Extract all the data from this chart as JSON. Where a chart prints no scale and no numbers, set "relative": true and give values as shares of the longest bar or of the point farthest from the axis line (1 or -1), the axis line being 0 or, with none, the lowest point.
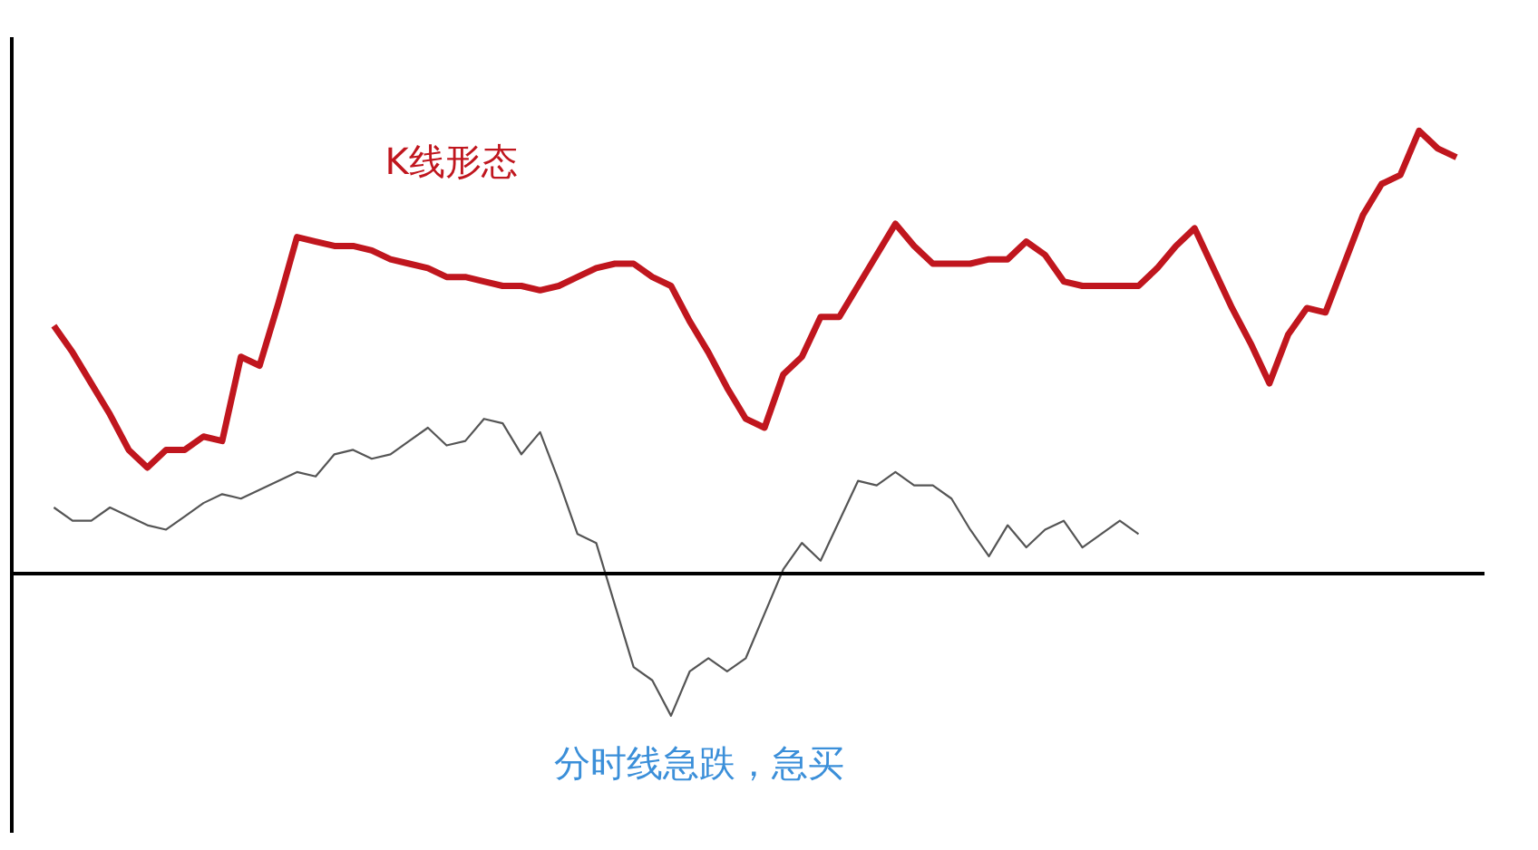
{
  "chart_data": {
    "type": "line",
    "relative": true,
    "grid": false,
    "categories": [
      null,
      null,
      null,
      null,
      null,
      null,
      null,
      null,
      null,
      null,
      null,
      null,
      null,
      null,
      null,
      null,
      null,
      null,
      null,
      null,
      null,
      null,
      null,
      null,
      null,
      null,
      null,
      null,
      null,
      null,
      null,
      null,
      null,
      null,
      null,
      null,
      null,
      null,
      null,
      null,
      null,
      null,
      null,
      null,
      null,
      null,
      null,
      null,
      null,
      null,
      null,
      null,
      null,
      null,
      null,
      null,
      null,
      null,
      null,
      null,
      null,
      null,
      null,
      null,
      null,
      null,
      null,
      null,
      null,
      null,
      null,
      null,
      null,
      null,
      null,
      null
    ],
    "series": [
      {
        "name": "K线形态",
        "color": "#c0161e",
        "values": [
          0.56,
          0.5,
          0.43,
          0.36,
          0.28,
          0.24,
          0.28,
          0.28,
          0.31,
          0.3,
          0.49,
          0.47,
          0.61,
          0.76,
          0.75,
          0.74,
          0.74,
          0.73,
          0.71,
          0.7,
          0.69,
          0.67,
          0.67,
          0.66,
          0.65,
          0.65,
          0.64,
          0.65,
          0.67,
          0.69,
          0.7,
          0.7,
          0.67,
          0.65,
          0.57,
          0.5,
          0.42,
          0.35,
          0.33,
          0.45,
          0.49,
          0.58,
          0.58,
          0.65,
          0.72,
          0.79,
          0.74,
          0.7,
          0.7,
          0.7,
          0.71,
          0.71,
          0.75,
          0.72,
          0.66,
          0.65,
          0.65,
          0.65,
          0.65,
          0.69,
          0.74,
          0.78,
          0.69,
          0.6,
          0.52,
          0.43,
          0.54,
          0.6,
          0.59,
          0.7,
          0.81,
          0.88,
          0.9,
          1,
          0.96,
          0.94
        ]
      },
      {
        "name": "分时线急跌，急买",
        "color": "#555555",
        "values": [
          0.15,
          0.12,
          0.12,
          0.15,
          0.13,
          0.11,
          0.1,
          0.13,
          0.16,
          0.18,
          0.17,
          0.19,
          0.21,
          0.23,
          0.22,
          0.27,
          0.28,
          0.26,
          0.27,
          0.3,
          0.33,
          0.29,
          0.3,
          0.35,
          0.34,
          0.27,
          0.32,
          0.21,
          0.09,
          0.07,
          -0.07,
          -0.21,
          -0.24,
          -0.32,
          -0.22,
          -0.19,
          -0.22,
          -0.19,
          -0.09,
          0.01,
          0.07,
          0.03,
          0.12,
          0.21,
          0.2,
          0.23,
          0.2,
          0.2,
          0.17,
          0.1,
          0.04,
          0.11,
          0.06,
          0.1,
          0.12,
          0.06,
          0.09,
          0.12,
          0.09,
          null,
          null,
          null,
          null,
          null,
          null,
          null,
          null,
          null,
          null,
          null,
          null,
          null,
          null,
          null,
          null,
          null
        ]
      }
    ]
  }
}
